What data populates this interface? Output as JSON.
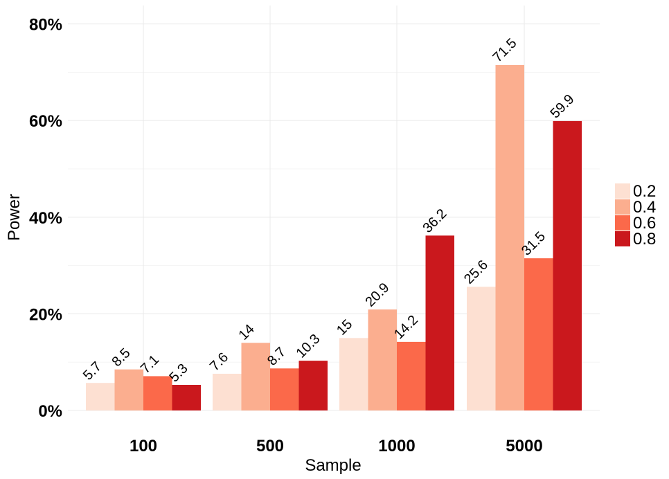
{
  "chart_data": {
    "type": "bar",
    "xlabel": "Sample",
    "ylabel": "Power",
    "categories": [
      "100",
      "500",
      "1000",
      "5000"
    ],
    "ylim": [
      0,
      80
    ],
    "yticks": [
      "0%",
      "20%",
      "40%",
      "60%",
      "80%"
    ],
    "grid": true,
    "legend_position": "right",
    "series": [
      {
        "name": "0.2",
        "color": "#fde0d2",
        "values": [
          5.7,
          7.6,
          15,
          25.6
        ],
        "labels": [
          "5.7",
          "7.6",
          "15",
          "25.6"
        ]
      },
      {
        "name": "0.4",
        "color": "#fbae8f",
        "values": [
          8.5,
          14,
          20.9,
          71.5
        ],
        "labels": [
          "8.5",
          "14",
          "20.9",
          "71.5"
        ]
      },
      {
        "name": "0.6",
        "color": "#fb694a",
        "values": [
          7.1,
          8.7,
          14.2,
          31.5
        ],
        "labels": [
          "7.1",
          "8.7",
          "14.2",
          "31.5"
        ]
      },
      {
        "name": "0.8",
        "color": "#ca181d",
        "values": [
          5.3,
          10.3,
          36.2,
          59.9
        ],
        "labels": [
          "5.3",
          "10.3",
          "36.2",
          "59.9"
        ]
      }
    ]
  }
}
